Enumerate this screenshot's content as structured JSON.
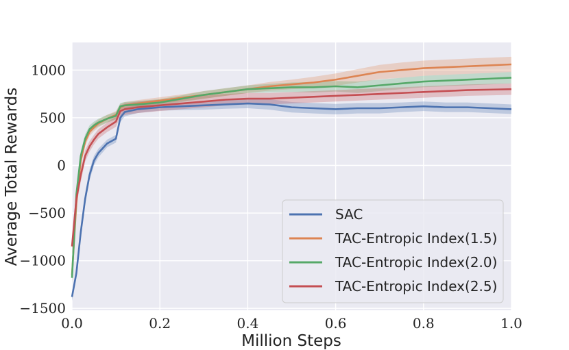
{
  "chart_data": {
    "type": "line",
    "title": "",
    "xlabel": "Million Steps",
    "ylabel": "Average Total Rewards",
    "xlim": [
      0.0,
      1.0
    ],
    "ylim": [
      -1520,
      1290
    ],
    "x_ticks": [
      "0.0",
      "0.2",
      "0.4",
      "0.6",
      "0.8",
      "1.0"
    ],
    "x_tick_values": [
      0.0,
      0.2,
      0.4,
      0.6,
      0.8,
      1.0
    ],
    "y_ticks": [
      "−1500",
      "−1000",
      "−500",
      "0",
      "500",
      "1000"
    ],
    "y_tick_values": [
      -1500,
      -1000,
      -500,
      0,
      500,
      1000
    ],
    "grid": true,
    "legend_position": "bottom-right",
    "series": [
      {
        "name": "SAC",
        "color": "#4c72b0",
        "x": [
          0.0,
          0.01,
          0.02,
          0.03,
          0.04,
          0.05,
          0.06,
          0.08,
          0.1,
          0.11,
          0.12,
          0.15,
          0.2,
          0.25,
          0.3,
          0.35,
          0.4,
          0.45,
          0.5,
          0.55,
          0.6,
          0.65,
          0.7,
          0.75,
          0.8,
          0.85,
          0.9,
          0.95,
          1.0
        ],
        "y": [
          -1380,
          -1130,
          -700,
          -350,
          -100,
          50,
          130,
          230,
          280,
          500,
          560,
          590,
          610,
          620,
          630,
          640,
          650,
          640,
          610,
          600,
          590,
          600,
          600,
          610,
          620,
          610,
          610,
          600,
          590
        ],
        "band": [
          40,
          50,
          60,
          60,
          55,
          50,
          45,
          40,
          40,
          45,
          45,
          40,
          35,
          40,
          45,
          45,
          50,
          55,
          55,
          55,
          55,
          55,
          55,
          50,
          50,
          50,
          50,
          50,
          50
        ]
      },
      {
        "name": "TAC-Entropic Index(1.5)",
        "color": "#dd8452",
        "x": [
          0.0,
          0.01,
          0.02,
          0.03,
          0.04,
          0.05,
          0.06,
          0.08,
          0.1,
          0.11,
          0.12,
          0.15,
          0.2,
          0.25,
          0.3,
          0.35,
          0.4,
          0.45,
          0.5,
          0.55,
          0.6,
          0.65,
          0.7,
          0.75,
          0.8,
          0.85,
          0.9,
          0.95,
          1.0
        ],
        "y": [
          -1150,
          -400,
          50,
          250,
          350,
          400,
          440,
          490,
          530,
          610,
          630,
          650,
          680,
          710,
          740,
          770,
          800,
          830,
          850,
          870,
          900,
          940,
          980,
          1000,
          1020,
          1030,
          1040,
          1050,
          1060
        ],
        "band": [
          60,
          60,
          50,
          45,
          40,
          40,
          40,
          40,
          40,
          35,
          35,
          35,
          35,
          35,
          40,
          40,
          40,
          45,
          50,
          60,
          65,
          70,
          75,
          80,
          80,
          80,
          80,
          80,
          80
        ]
      },
      {
        "name": "TAC-Entropic Index(2.0)",
        "color": "#55a868",
        "x": [
          0.0,
          0.01,
          0.02,
          0.03,
          0.04,
          0.05,
          0.06,
          0.08,
          0.1,
          0.11,
          0.12,
          0.15,
          0.2,
          0.25,
          0.3,
          0.35,
          0.4,
          0.45,
          0.5,
          0.55,
          0.6,
          0.65,
          0.7,
          0.75,
          0.8,
          0.85,
          0.9,
          0.95,
          1.0
        ],
        "y": [
          -1180,
          -300,
          100,
          280,
          380,
          420,
          450,
          490,
          520,
          620,
          630,
          640,
          660,
          700,
          740,
          770,
          800,
          810,
          820,
          820,
          830,
          820,
          840,
          860,
          880,
          890,
          900,
          910,
          920
        ],
        "band": [
          60,
          60,
          50,
          45,
          40,
          40,
          40,
          40,
          40,
          35,
          35,
          35,
          35,
          35,
          40,
          40,
          40,
          45,
          50,
          55,
          55,
          60,
          60,
          60,
          60,
          60,
          60,
          60,
          60
        ]
      },
      {
        "name": "TAC-Entropic Index(2.5)",
        "color": "#c44e52",
        "x": [
          0.0,
          0.01,
          0.02,
          0.03,
          0.04,
          0.05,
          0.06,
          0.08,
          0.1,
          0.11,
          0.12,
          0.15,
          0.2,
          0.25,
          0.3,
          0.35,
          0.4,
          0.45,
          0.5,
          0.55,
          0.6,
          0.65,
          0.7,
          0.75,
          0.8,
          0.85,
          0.9,
          0.95,
          1.0
        ],
        "y": [
          -850,
          -350,
          -100,
          100,
          200,
          270,
          330,
          400,
          460,
          570,
          590,
          610,
          630,
          650,
          670,
          690,
          700,
          700,
          710,
          720,
          730,
          740,
          750,
          760,
          770,
          780,
          790,
          795,
          800
        ],
        "band": [
          80,
          80,
          70,
          60,
          55,
          50,
          50,
          50,
          55,
          60,
          60,
          60,
          60,
          60,
          60,
          60,
          60,
          60,
          60,
          60,
          60,
          60,
          60,
          60,
          60,
          60,
          60,
          60,
          60
        ]
      }
    ]
  }
}
